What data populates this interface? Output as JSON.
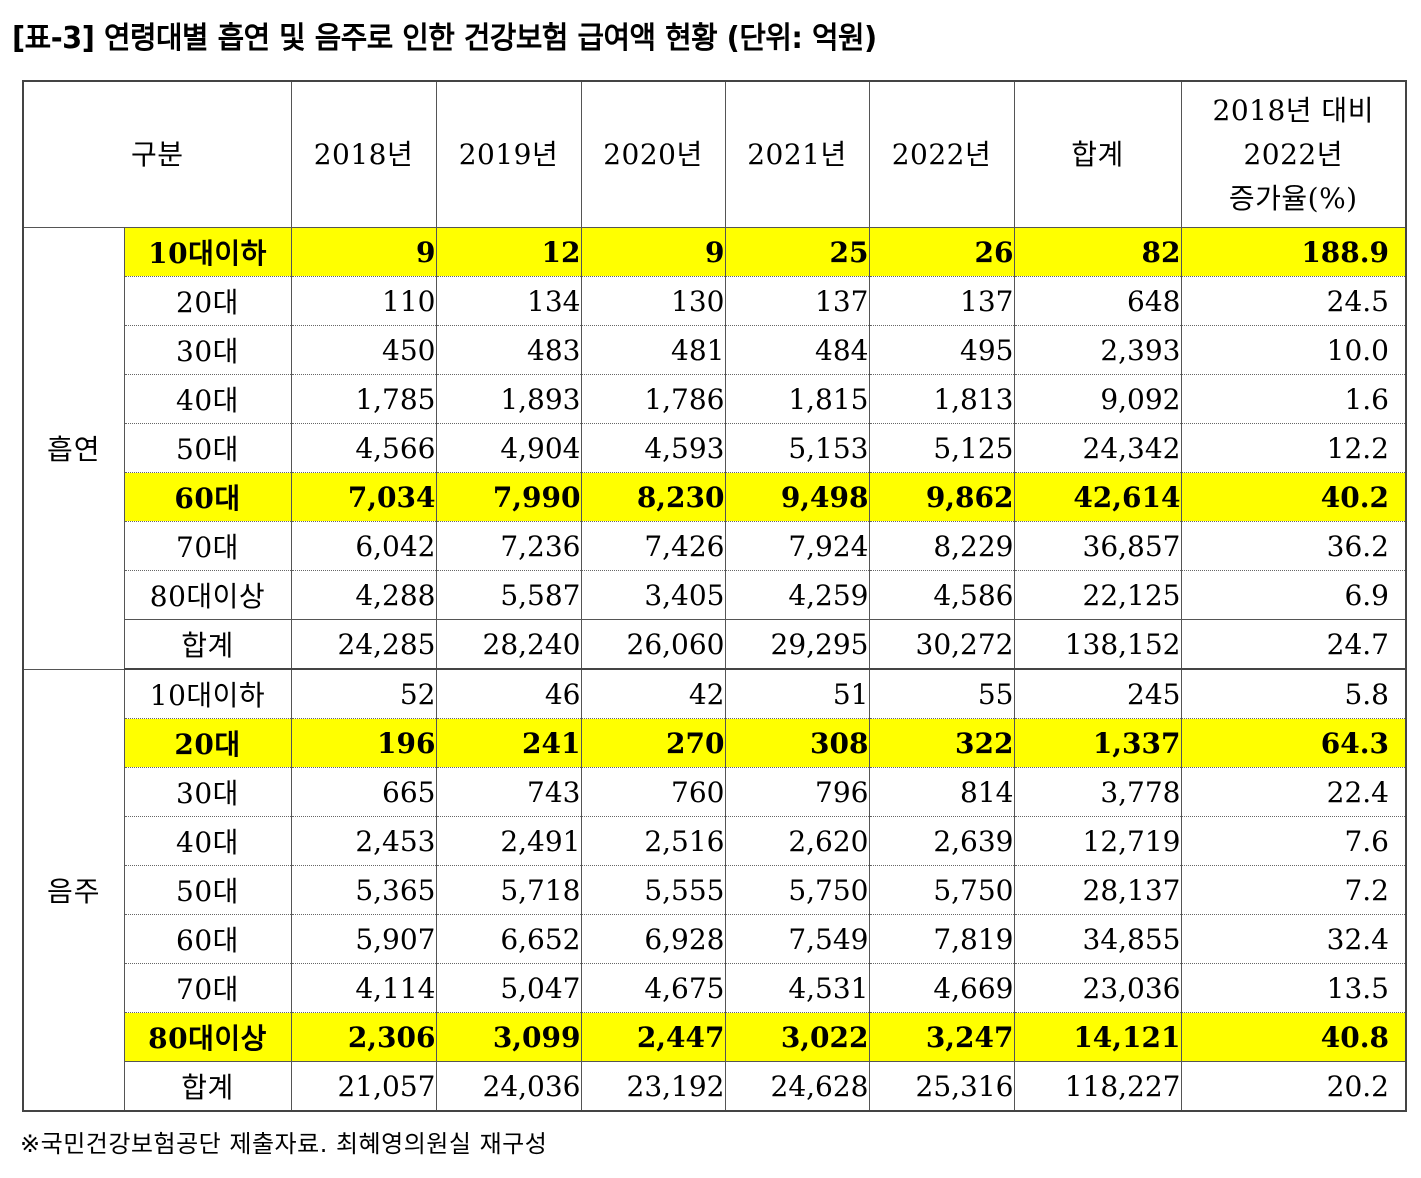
{
  "title": "[표-3] 연령대별 흡연 및 음주로 인한 건강보험 급여액 현황 (단위: 억원)",
  "header": {
    "category": "구분",
    "years": [
      "2018년",
      "2019년",
      "2020년",
      "2021년",
      "2022년"
    ],
    "total": "합계",
    "growth_line1": "2018년 대비",
    "growth_line2": "2022년",
    "growth_line3": "증가율(%)"
  },
  "highlight_color": "#ffff00",
  "groups": [
    {
      "name": "흡연",
      "rows": [
        {
          "label": "10대이하",
          "values": [
            "9",
            "12",
            "9",
            "25",
            "26"
          ],
          "total": "82",
          "growth": "188.9",
          "highlight": true
        },
        {
          "label": "20대",
          "values": [
            "110",
            "134",
            "130",
            "137",
            "137"
          ],
          "total": "648",
          "growth": "24.5",
          "highlight": false
        },
        {
          "label": "30대",
          "values": [
            "450",
            "483",
            "481",
            "484",
            "495"
          ],
          "total": "2,393",
          "growth": "10.0",
          "highlight": false
        },
        {
          "label": "40대",
          "values": [
            "1,785",
            "1,893",
            "1,786",
            "1,815",
            "1,813"
          ],
          "total": "9,092",
          "growth": "1.6",
          "highlight": false
        },
        {
          "label": "50대",
          "values": [
            "4,566",
            "4,904",
            "4,593",
            "5,153",
            "5,125"
          ],
          "total": "24,342",
          "growth": "12.2",
          "highlight": false
        },
        {
          "label": "60대",
          "values": [
            "7,034",
            "7,990",
            "8,230",
            "9,498",
            "9,862"
          ],
          "total": "42,614",
          "growth": "40.2",
          "highlight": true
        },
        {
          "label": "70대",
          "values": [
            "6,042",
            "7,236",
            "7,426",
            "7,924",
            "8,229"
          ],
          "total": "36,857",
          "growth": "36.2",
          "highlight": false
        },
        {
          "label": "80대이상",
          "values": [
            "4,288",
            "5,587",
            "3,405",
            "4,259",
            "4,586"
          ],
          "total": "22,125",
          "growth": "6.9",
          "highlight": false
        },
        {
          "label": "합계",
          "values": [
            "24,285",
            "28,240",
            "26,060",
            "29,295",
            "30,272"
          ],
          "total": "138,152",
          "growth": "24.7",
          "highlight": false,
          "is_total": true
        }
      ]
    },
    {
      "name": "음주",
      "rows": [
        {
          "label": "10대이하",
          "values": [
            "52",
            "46",
            "42",
            "51",
            "55"
          ],
          "total": "245",
          "growth": "5.8",
          "highlight": false
        },
        {
          "label": "20대",
          "values": [
            "196",
            "241",
            "270",
            "308",
            "322"
          ],
          "total": "1,337",
          "growth": "64.3",
          "highlight": true
        },
        {
          "label": "30대",
          "values": [
            "665",
            "743",
            "760",
            "796",
            "814"
          ],
          "total": "3,778",
          "growth": "22.4",
          "highlight": false
        },
        {
          "label": "40대",
          "values": [
            "2,453",
            "2,491",
            "2,516",
            "2,620",
            "2,639"
          ],
          "total": "12,719",
          "growth": "7.6",
          "highlight": false
        },
        {
          "label": "50대",
          "values": [
            "5,365",
            "5,718",
            "5,555",
            "5,750",
            "5,750"
          ],
          "total": "28,137",
          "growth": "7.2",
          "highlight": false
        },
        {
          "label": "60대",
          "values": [
            "5,907",
            "6,652",
            "6,928",
            "7,549",
            "7,819"
          ],
          "total": "34,855",
          "growth": "32.4",
          "highlight": false
        },
        {
          "label": "70대",
          "values": [
            "4,114",
            "5,047",
            "4,675",
            "4,531",
            "4,669"
          ],
          "total": "23,036",
          "growth": "13.5",
          "highlight": false
        },
        {
          "label": "80대이상",
          "values": [
            "2,306",
            "3,099",
            "2,447",
            "3,022",
            "3,247"
          ],
          "total": "14,121",
          "growth": "40.8",
          "highlight": true
        },
        {
          "label": "합계",
          "values": [
            "21,057",
            "24,036",
            "23,192",
            "24,628",
            "25,316"
          ],
          "total": "118,227",
          "growth": "20.2",
          "highlight": false,
          "is_total": true
        }
      ]
    }
  ],
  "footnote": "※국민건강보험공단 제출자료. 최혜영의원실 재구성"
}
